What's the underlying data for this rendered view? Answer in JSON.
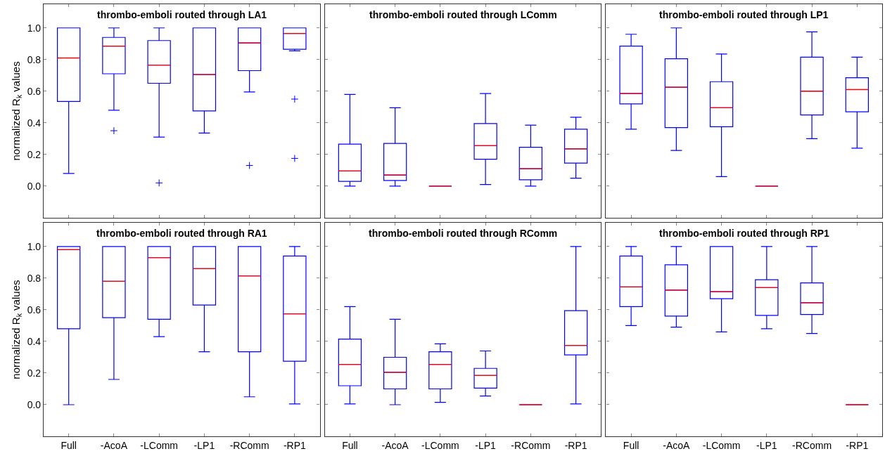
{
  "chart_data": [
    {
      "type": "box",
      "title": "thrombo-emboli routed through LA1",
      "ylabel": "normalized R$_{k}$ values",
      "categories": [
        "Full",
        "-AcoA",
        "-LComm",
        "-LP1",
        "-RComm",
        "-RP1"
      ],
      "ylim": [
        -0.2,
        1.15
      ],
      "yticks": [
        {
          "value": 0,
          "label": "0.0"
        },
        {
          "value": 0.2,
          "label": "0.2"
        },
        {
          "value": 0.4,
          "label": "0.4"
        },
        {
          "value": 0.6,
          "label": "0.6"
        },
        {
          "value": 0.8,
          "label": "0.8"
        },
        {
          "value": 1,
          "label": "1.0"
        }
      ],
      "tick_labels": "y",
      "color": "#0000ff",
      "boxes": [
        {
          "low": 0.08,
          "q1": 0.535,
          "median": 0.81,
          "q3": 1.0,
          "high": 1.0
        },
        {
          "low": 0.48,
          "q1": 0.71,
          "median": 0.885,
          "q3": 0.94,
          "high": 1.0,
          "outliers": [
            0.35
          ]
        },
        {
          "low": 0.31,
          "q1": 0.65,
          "median": 0.765,
          "q3": 0.92,
          "high": 1.0,
          "outliers": [
            0.02
          ]
        },
        {
          "low": 0.335,
          "q1": 0.475,
          "median": 0.705,
          "q3": 1.0,
          "high": 1.0
        },
        {
          "low": 0.595,
          "q1": 0.73,
          "median": 0.905,
          "q3": 1.0,
          "high": 1.0,
          "outliers": [
            0.13
          ]
        },
        {
          "low": 0.855,
          "q1": 0.865,
          "median": 0.965,
          "q3": 1.0,
          "high": 1.0,
          "outliers": [
            0.55,
            0.175
          ]
        }
      ]
    },
    {
      "type": "box",
      "title": "thrombo-emboli routed through LComm",
      "categories": [
        "Full",
        "-AcoA",
        "-LComm",
        "-LP1",
        "-RComm",
        "-RP1"
      ],
      "ylim": [
        -0.2,
        1.15
      ],
      "yticks": [
        0,
        0.2,
        0.4,
        0.6,
        0.8,
        1
      ],
      "tick_labels": false,
      "color": "#0000ff",
      "boxes": [
        {
          "low": 0.0,
          "q1": 0.03,
          "median": 0.095,
          "q3": 0.265,
          "high": 0.58
        },
        {
          "low": 0.0,
          "q1": 0.035,
          "median": 0.07,
          "q3": 0.27,
          "high": 0.495
        },
        {
          "low": 0.0,
          "q1": 0.0,
          "median": 0.0,
          "q3": 0.0,
          "high": 0.0
        },
        {
          "low": 0.01,
          "q1": 0.17,
          "median": 0.255,
          "q3": 0.395,
          "high": 0.585
        },
        {
          "low": 0.0,
          "q1": 0.04,
          "median": 0.11,
          "q3": 0.245,
          "high": 0.385
        },
        {
          "low": 0.05,
          "q1": 0.145,
          "median": 0.235,
          "q3": 0.36,
          "high": 0.435
        }
      ]
    },
    {
      "type": "box",
      "title": "thrombo-emboli routed through LP1",
      "categories": [
        "Full",
        "-AcoA",
        "-LComm",
        "-LP1",
        "-RComm",
        "-RP1"
      ],
      "ylim": [
        -0.2,
        1.15
      ],
      "yticks": [
        0,
        0.2,
        0.4,
        0.6,
        0.8,
        1
      ],
      "tick_labels": false,
      "color": "#0000ff",
      "boxes": [
        {
          "low": 0.36,
          "q1": 0.52,
          "median": 0.585,
          "q3": 0.885,
          "high": 0.96
        },
        {
          "low": 0.225,
          "q1": 0.37,
          "median": 0.625,
          "q3": 0.805,
          "high": 1.0
        },
        {
          "low": 0.06,
          "q1": 0.375,
          "median": 0.495,
          "q3": 0.66,
          "high": 0.835
        },
        {
          "low": 0.0,
          "q1": 0.0,
          "median": 0.0,
          "q3": 0.0,
          "high": 0.0
        },
        {
          "low": 0.3,
          "q1": 0.45,
          "median": 0.6,
          "q3": 0.815,
          "high": 0.975
        },
        {
          "low": 0.24,
          "q1": 0.47,
          "median": 0.61,
          "q3": 0.685,
          "high": 0.815
        }
      ]
    },
    {
      "type": "box",
      "title": "thrombo-emboli routed through RA1",
      "ylabel": "normalized R$_{k}$ values",
      "categories": [
        "Full",
        "-AcoA",
        "-LComm",
        "-LP1",
        "-RComm",
        "-RP1"
      ],
      "ylim": [
        -0.2,
        1.15
      ],
      "yticks": [
        {
          "value": 0,
          "label": "0.0"
        },
        {
          "value": 0.2,
          "label": "0.2"
        },
        {
          "value": 0.4,
          "label": "0.4"
        },
        {
          "value": 0.6,
          "label": "0.6"
        },
        {
          "value": 0.8,
          "label": "0.8"
        },
        {
          "value": 1,
          "label": "1.0"
        }
      ],
      "color": "#0000ff",
      "boxes": [
        {
          "low": 0.0,
          "q1": 0.48,
          "median": 0.98,
          "q3": 1.0,
          "high": 1.0
        },
        {
          "low": 0.16,
          "q1": 0.55,
          "median": 0.78,
          "q3": 1.0,
          "high": 1.0
        },
        {
          "low": 0.43,
          "q1": 0.54,
          "median": 0.93,
          "q3": 1.0,
          "high": 1.0
        },
        {
          "low": 0.335,
          "q1": 0.63,
          "median": 0.86,
          "q3": 1.0,
          "high": 1.0
        },
        {
          "low": 0.05,
          "q1": 0.335,
          "median": 0.815,
          "q3": 1.0,
          "high": 1.0
        },
        {
          "low": 0.005,
          "q1": 0.275,
          "median": 0.575,
          "q3": 0.94,
          "high": 1.0
        }
      ]
    },
    {
      "type": "box",
      "title": "thrombo-emboli routed through RComm",
      "categories": [
        "Full",
        "-AcoA",
        "-LComm",
        "-LP1",
        "-RComm",
        "-RP1"
      ],
      "ylim": [
        -0.2,
        1.15
      ],
      "yticks": [
        0,
        0.2,
        0.4,
        0.6,
        0.8,
        1
      ],
      "tick_labels": "x",
      "color": "#0000ff",
      "boxes": [
        {
          "low": 0.005,
          "q1": 0.12,
          "median": 0.255,
          "q3": 0.415,
          "high": 0.62
        },
        {
          "low": 0.0,
          "q1": 0.1,
          "median": 0.205,
          "q3": 0.3,
          "high": 0.54
        },
        {
          "low": 0.015,
          "q1": 0.1,
          "median": 0.255,
          "q3": 0.335,
          "high": 0.385
        },
        {
          "low": 0.055,
          "q1": 0.105,
          "median": 0.185,
          "q3": 0.23,
          "high": 0.34
        },
        {
          "low": 0.0,
          "q1": 0.0,
          "median": 0.0,
          "q3": 0.0,
          "high": 0.0
        },
        {
          "low": 0.005,
          "q1": 0.315,
          "median": 0.375,
          "q3": 0.595,
          "high": 1.0
        }
      ]
    },
    {
      "type": "box",
      "title": "thrombo-emboli routed through RP1",
      "categories": [
        "Full",
        "-AcoA",
        "-LComm",
        "-LP1",
        "-RComm",
        "-RP1"
      ],
      "ylim": [
        -0.2,
        1.15
      ],
      "yticks": [
        0,
        0.2,
        0.4,
        0.6,
        0.8,
        1
      ],
      "tick_labels": "x",
      "color": "#0000ff",
      "boxes": [
        {
          "low": 0.5,
          "q1": 0.62,
          "median": 0.745,
          "q3": 0.94,
          "high": 1.0
        },
        {
          "low": 0.49,
          "q1": 0.56,
          "median": 0.725,
          "q3": 0.885,
          "high": 1.0
        },
        {
          "low": 0.46,
          "q1": 0.67,
          "median": 0.715,
          "q3": 1.0,
          "high": 1.0
        },
        {
          "low": 0.48,
          "q1": 0.565,
          "median": 0.74,
          "q3": 0.79,
          "high": 1.0
        },
        {
          "low": 0.45,
          "q1": 0.57,
          "median": 0.645,
          "q3": 0.77,
          "high": 1.0
        },
        {
          "low": 0.0,
          "q1": 0.0,
          "median": 0.0,
          "q3": 0.0,
          "high": 0.0
        }
      ]
    }
  ]
}
